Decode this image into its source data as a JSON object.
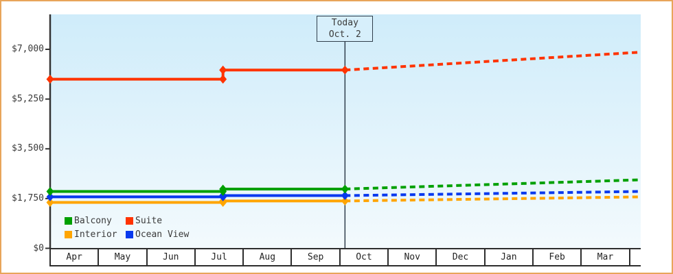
{
  "frame": {
    "border_color": "#e8a55a"
  },
  "chart_data": {
    "type": "line",
    "title": "",
    "x_months": [
      "Apr",
      "May",
      "Jun",
      "Jul",
      "Aug",
      "Sep",
      "Oct",
      "Nov",
      "Dec",
      "Jan",
      "Feb",
      "Mar"
    ],
    "y_ticks": [
      {
        "value": 0,
        "label": "$0"
      },
      {
        "value": 1750,
        "label": "$1,750"
      },
      {
        "value": 3500,
        "label": "$3,500"
      },
      {
        "value": 5250,
        "label": "$5,250"
      },
      {
        "value": 7000,
        "label": "$7,000"
      }
    ],
    "ylim": [
      0,
      8250
    ],
    "grid": false,
    "legend_position": "bottom-left",
    "plot_bg_gradient": [
      "#cfecfa",
      "#f3fafd"
    ],
    "today_marker": {
      "line1": "Today",
      "line2": "Oct. 2",
      "month_position": 6.09
    },
    "series": [
      {
        "name": "Interior",
        "color": "#ffa500",
        "history": [
          [
            0,
            1615
          ],
          [
            3.57,
            1615
          ],
          [
            3.57,
            1665
          ],
          [
            6.09,
            1665
          ]
        ],
        "forecast": [
          [
            6.09,
            1665
          ],
          [
            12.2,
            1810
          ]
        ],
        "dots": [
          [
            0,
            1615
          ],
          [
            3.57,
            1615
          ],
          [
            3.57,
            1665
          ],
          [
            6.09,
            1665
          ]
        ]
      },
      {
        "name": "Ocean View",
        "color": "#0839ee",
        "history": [
          [
            0,
            1810
          ],
          [
            3.57,
            1810
          ],
          [
            3.57,
            1855
          ],
          [
            6.09,
            1855
          ]
        ],
        "forecast": [
          [
            6.09,
            1855
          ],
          [
            12.2,
            2000
          ]
        ],
        "dots": [
          [
            0,
            1810
          ],
          [
            3.57,
            1810
          ],
          [
            3.57,
            1855
          ],
          [
            6.09,
            1855
          ]
        ]
      },
      {
        "name": "Balcony",
        "color": "#00a000",
        "history": [
          [
            0,
            2000
          ],
          [
            3.57,
            2000
          ],
          [
            3.57,
            2085
          ],
          [
            6.09,
            2085
          ]
        ],
        "forecast": [
          [
            6.09,
            2085
          ],
          [
            12.2,
            2410
          ]
        ],
        "dots": [
          [
            0,
            2000
          ],
          [
            3.57,
            2000
          ],
          [
            3.57,
            2085
          ],
          [
            6.09,
            2085
          ]
        ]
      },
      {
        "name": "Suite",
        "color": "#ff3300",
        "history": [
          [
            0,
            5950
          ],
          [
            3.57,
            5950
          ],
          [
            3.57,
            6270
          ],
          [
            6.09,
            6270
          ]
        ],
        "forecast": [
          [
            6.09,
            6270
          ],
          [
            12.2,
            6900
          ]
        ],
        "dots": [
          [
            0,
            5950
          ],
          [
            3.57,
            5950
          ],
          [
            3.57,
            6270
          ],
          [
            6.09,
            6270
          ]
        ]
      }
    ],
    "legend": [
      {
        "label": "Balcony",
        "color": "#00a000"
      },
      {
        "label": "Suite",
        "color": "#ff3300"
      },
      {
        "label": "Interior",
        "color": "#ffa500"
      },
      {
        "label": "Ocean View",
        "color": "#0839ee"
      }
    ]
  }
}
